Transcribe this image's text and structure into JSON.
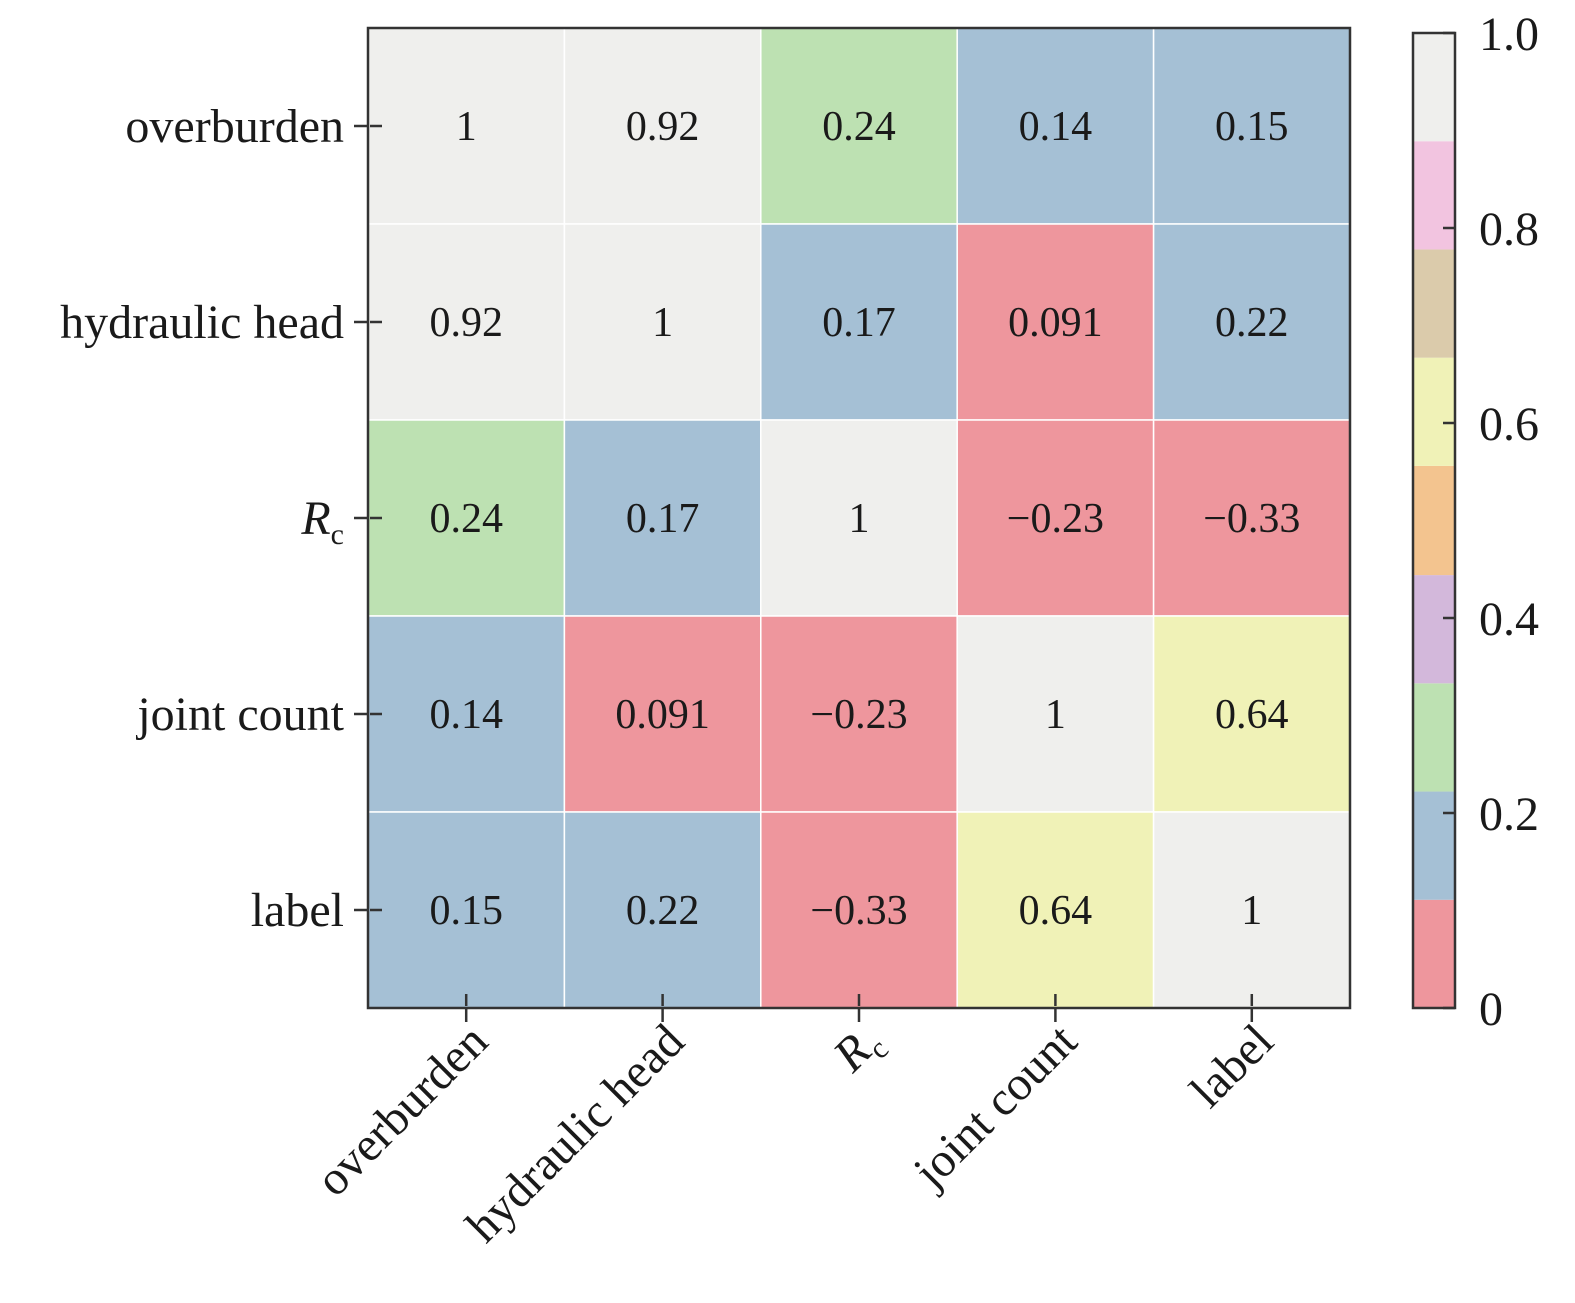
{
  "chart_data": {
    "type": "heatmap",
    "row_labels": [
      "overburden",
      "hydraulic head",
      "Rc",
      "joint count",
      "label"
    ],
    "col_labels": [
      "overburden",
      "hydraulic head",
      "Rc",
      "joint count",
      "label"
    ],
    "label_parts": {
      "Rc": {
        "main": "R",
        "sub": "c"
      }
    },
    "values": [
      [
        1,
        0.92,
        0.24,
        0.14,
        0.15
      ],
      [
        0.92,
        1,
        0.17,
        0.091,
        0.22
      ],
      [
        0.24,
        0.17,
        1,
        -0.23,
        -0.33
      ],
      [
        0.14,
        0.091,
        -0.23,
        1,
        0.64
      ],
      [
        0.15,
        0.22,
        -0.33,
        0.64,
        1
      ]
    ],
    "value_labels": [
      [
        "1",
        "0.92",
        "0.24",
        "0.14",
        "0.15"
      ],
      [
        "0.92",
        "1",
        "0.17",
        "0.091",
        "0.22"
      ],
      [
        "0.24",
        "0.17",
        "1",
        "−0.23",
        "−0.33"
      ],
      [
        "0.14",
        "0.091",
        "−0.23",
        "1",
        "0.64"
      ],
      [
        "0.15",
        "0.22",
        "−0.33",
        "0.64",
        "1"
      ]
    ],
    "colorbar": {
      "range": [
        0,
        1.0
      ],
      "ticks": [
        "0",
        "0.2",
        "0.4",
        "0.6",
        "0.8",
        "1.0"
      ],
      "tick_values": [
        0,
        0.2,
        0.4,
        0.6,
        0.8,
        1.0
      ],
      "bins": [
        {
          "from": 0.0,
          "to": 0.111,
          "color": "#ee969d"
        },
        {
          "from": 0.111,
          "to": 0.222,
          "color": "#a5c0d5"
        },
        {
          "from": 0.222,
          "to": 0.333,
          "color": "#bde1b2"
        },
        {
          "from": 0.333,
          "to": 0.444,
          "color": "#d3b8db"
        },
        {
          "from": 0.444,
          "to": 0.556,
          "color": "#f3c48f"
        },
        {
          "from": 0.556,
          "to": 0.667,
          "color": "#f0f2b7"
        },
        {
          "from": 0.667,
          "to": 0.778,
          "color": "#dbcbab"
        },
        {
          "from": 0.778,
          "to": 0.889,
          "color": "#f2c4e0"
        },
        {
          "from": 0.889,
          "to": 1.0,
          "color": "#efefed"
        }
      ]
    },
    "grid": false,
    "legend": "colorbar-right"
  }
}
